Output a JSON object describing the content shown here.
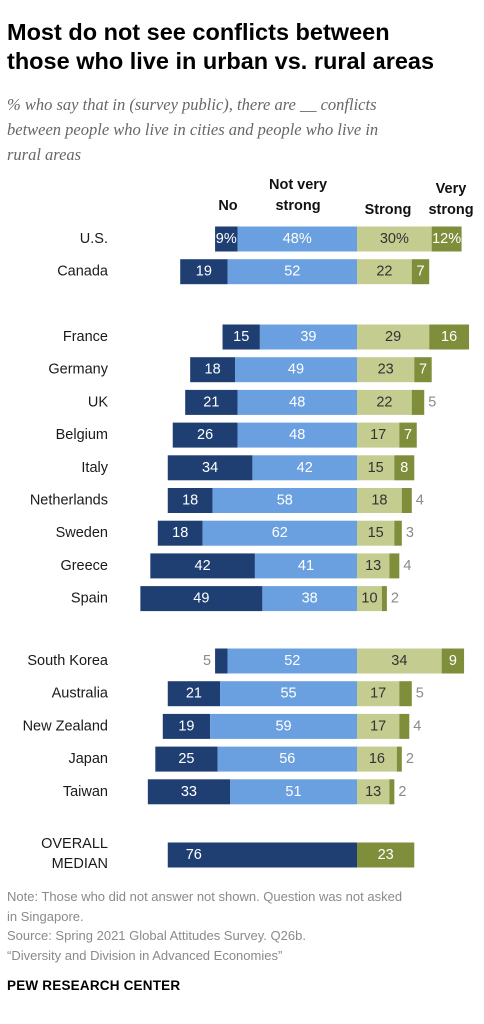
{
  "header": {
    "title_line1": "Most do not see conflicts between",
    "title_line2": "those who live in urban vs. rural areas",
    "subtitle_line1": "% who say that in (survey public), there are __ conflicts",
    "subtitle_line2": "between people who live in cities and people who live in",
    "subtitle_line3": "rural areas"
  },
  "footer": {
    "note_line1": "Note: Those who did not answer not shown. Question was not asked",
    "note_line2": "in Singapore.",
    "source_line1": "Source: Spring 2021 Global Attitudes Survey. Q26b.",
    "source_line2": "“Diversity and Division in Advanced Economies”",
    "brand": "PEW RESEARCH CENTER"
  },
  "colors": {
    "no": "#1f3f73",
    "not_very_strong": "#6aa0e0",
    "strong": "#c4cc8f",
    "very_strong": "#7f8e3a",
    "median_not_strong": "#1f3f73",
    "median_strong": "#7f8e3a"
  },
  "chart_data": {
    "type": "bar",
    "orientation": "horizontal",
    "stacking": "diverging",
    "legend": [
      {
        "key": "no",
        "line1": "No",
        "line2": ""
      },
      {
        "key": "not_very_strong",
        "line1": "Not very",
        "line2": "strong"
      },
      {
        "key": "strong",
        "line1": "Strong",
        "line2": ""
      },
      {
        "key": "very_strong",
        "line1": "Very",
        "line2": "strong"
      }
    ],
    "groups": [
      [
        {
          "country": "U.S.",
          "no": 9,
          "not_very_strong": 48,
          "strong": 30,
          "very_strong": 12,
          "labels": [
            "9%",
            "48%",
            "30%",
            "12%"
          ]
        },
        {
          "country": "Canada",
          "no": 19,
          "not_very_strong": 52,
          "strong": 22,
          "very_strong": 7,
          "labels": [
            "19",
            "52",
            "22",
            "7"
          ]
        }
      ],
      [
        {
          "country": "France",
          "no": 15,
          "not_very_strong": 39,
          "strong": 29,
          "very_strong": 16,
          "labels": [
            "15",
            "39",
            "29",
            "16"
          ]
        },
        {
          "country": "Germany",
          "no": 18,
          "not_very_strong": 49,
          "strong": 23,
          "very_strong": 7,
          "labels": [
            "18",
            "49",
            "23",
            "7"
          ]
        },
        {
          "country": "UK",
          "no": 21,
          "not_very_strong": 48,
          "strong": 22,
          "very_strong": 5,
          "labels": [
            "21",
            "48",
            "22",
            "5"
          ]
        },
        {
          "country": "Belgium",
          "no": 26,
          "not_very_strong": 48,
          "strong": 17,
          "very_strong": 7,
          "labels": [
            "26",
            "48",
            "17",
            "7"
          ]
        },
        {
          "country": "Italy",
          "no": 34,
          "not_very_strong": 42,
          "strong": 15,
          "very_strong": 8,
          "labels": [
            "34",
            "42",
            "15",
            "8"
          ]
        },
        {
          "country": "Netherlands",
          "no": 18,
          "not_very_strong": 58,
          "strong": 18,
          "very_strong": 4,
          "labels": [
            "18",
            "58",
            "18",
            "4"
          ]
        },
        {
          "country": "Sweden",
          "no": 18,
          "not_very_strong": 62,
          "strong": 15,
          "very_strong": 3,
          "labels": [
            "18",
            "62",
            "15",
            "3"
          ]
        },
        {
          "country": "Greece",
          "no": 42,
          "not_very_strong": 41,
          "strong": 13,
          "very_strong": 4,
          "labels": [
            "42",
            "41",
            "13",
            "4"
          ]
        },
        {
          "country": "Spain",
          "no": 49,
          "not_very_strong": 38,
          "strong": 10,
          "very_strong": 2,
          "labels": [
            "49",
            "38",
            "10",
            "2"
          ]
        }
      ],
      [
        {
          "country": "South Korea",
          "no": 5,
          "not_very_strong": 52,
          "strong": 34,
          "very_strong": 9,
          "labels": [
            "5",
            "52",
            "34",
            "9"
          ]
        },
        {
          "country": "Australia",
          "no": 21,
          "not_very_strong": 55,
          "strong": 17,
          "very_strong": 5,
          "labels": [
            "21",
            "55",
            "17",
            "5"
          ]
        },
        {
          "country": "New Zealand",
          "no": 19,
          "not_very_strong": 59,
          "strong": 17,
          "very_strong": 4,
          "labels": [
            "19",
            "59",
            "17",
            "4"
          ]
        },
        {
          "country": "Japan",
          "no": 25,
          "not_very_strong": 56,
          "strong": 16,
          "very_strong": 2,
          "labels": [
            "25",
            "56",
            "16",
            "2"
          ]
        },
        {
          "country": "Taiwan",
          "no": 33,
          "not_very_strong": 51,
          "strong": 13,
          "very_strong": 2,
          "labels": [
            "33",
            "51",
            "13",
            "2"
          ]
        }
      ]
    ],
    "median": {
      "line1": "OVERALL",
      "line2": "MEDIAN",
      "not_strong": 76,
      "strong": 23,
      "labels": [
        "76",
        "23"
      ]
    }
  }
}
